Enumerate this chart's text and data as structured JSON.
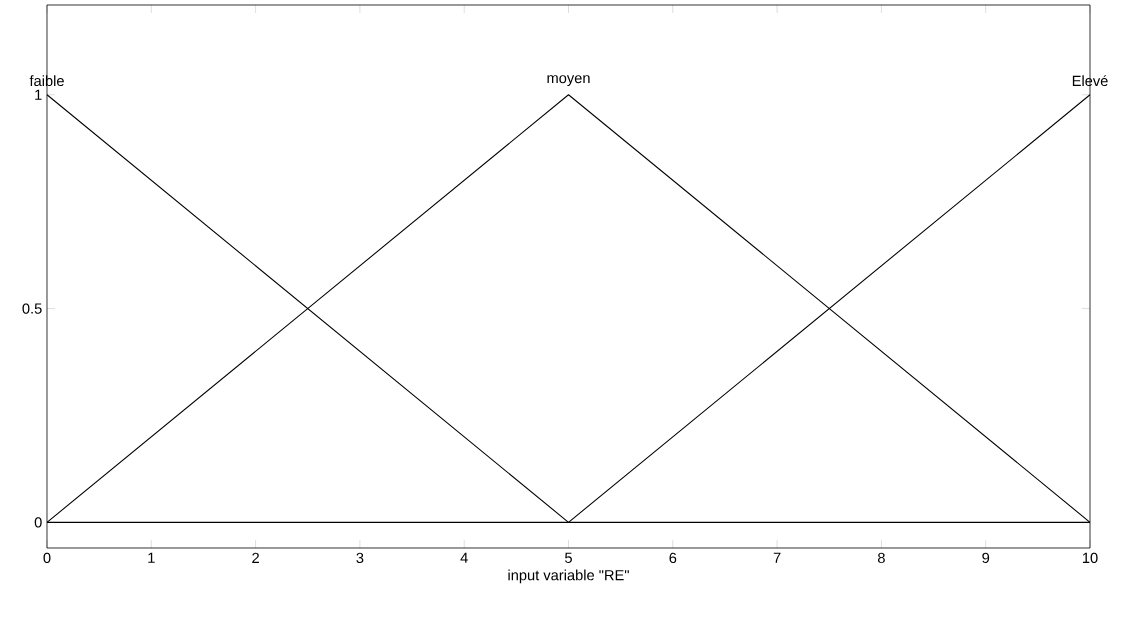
{
  "chart_data": {
    "type": "line",
    "xlabel": "input variable \"RE\"",
    "xlim": [
      0,
      10
    ],
    "ylim": [
      -0.06,
      1.21
    ],
    "xticks": [
      0,
      1,
      2,
      3,
      4,
      5,
      6,
      7,
      8,
      9,
      10
    ],
    "yticks": [
      0,
      0.5,
      1
    ],
    "grid": false,
    "legend": false,
    "marker": "none",
    "line_style": "solid",
    "series": [
      {
        "name": "faible",
        "color": "#000000",
        "x": [
          0,
          5,
          10
        ],
        "values": [
          1,
          0,
          0
        ]
      },
      {
        "name": "moyen",
        "color": "#000000",
        "x": [
          0,
          5,
          10
        ],
        "values": [
          0,
          1,
          0
        ]
      },
      {
        "name": "Elevé",
        "color": "#000000",
        "x": [
          0,
          5,
          10
        ],
        "values": [
          0,
          0,
          1
        ]
      }
    ]
  }
}
